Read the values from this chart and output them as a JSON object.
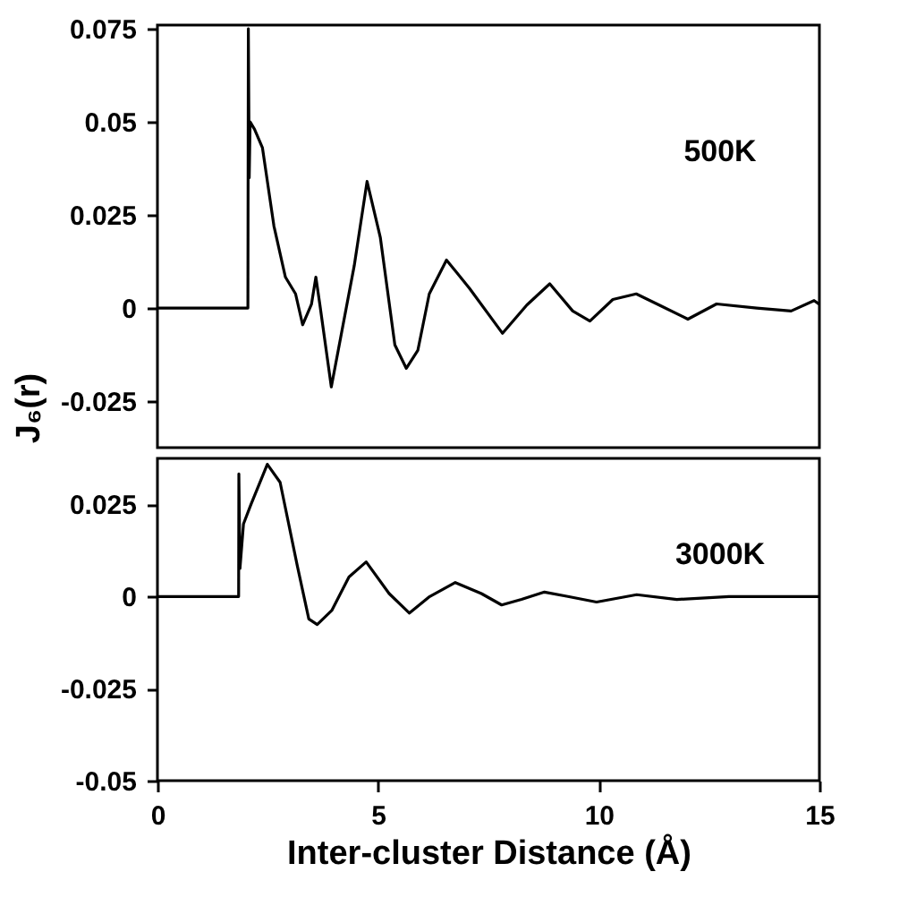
{
  "chart_data": [
    {
      "type": "line",
      "ylabel": "J₆(r)",
      "xlim": [
        0,
        15
      ],
      "xticks": [
        0,
        5,
        10,
        15
      ],
      "ylim": [
        -0.0375,
        0.076
      ],
      "yticks": [
        -0.025,
        0,
        0.025,
        0.05,
        0.075
      ],
      "tick_labels": "y",
      "grid": false,
      "series": [
        {
          "name": "500K",
          "color": "#000000",
          "x": [
            0,
            2.05,
            2.06,
            2.08,
            2.1,
            2.2,
            2.38,
            2.64,
            2.9,
            3.13,
            3.29,
            3.49,
            3.59,
            3.68,
            3.94,
            4.46,
            4.75,
            5.05,
            5.38,
            5.64,
            5.9,
            6.16,
            6.55,
            7.07,
            7.82,
            8.37,
            8.89,
            9.41,
            9.8,
            10.32,
            10.85,
            11.37,
            12.02,
            12.67,
            13.58,
            14.36,
            14.88,
            15
          ],
          "values": [
            0,
            0,
            0.075,
            0.035,
            0.05,
            0.048,
            0.043,
            0.022,
            0.0083,
            0.0038,
            -0.0045,
            0.001,
            0.0083,
            0.001,
            -0.0212,
            0.0114,
            0.034,
            0.019,
            -0.0099,
            -0.0162,
            -0.0114,
            0.0038,
            0.0129,
            0.0053,
            -0.0068,
            0.0008,
            0.0065,
            -0.0008,
            -0.0035,
            0.0023,
            0.0038,
            0.0008,
            -0.003,
            0.0011,
            0,
            -0.0008,
            0.002,
            0.001
          ]
        }
      ]
    },
    {
      "type": "line",
      "xlabel": "Inter-cluster Distance (Å)",
      "xlim": [
        0,
        15
      ],
      "xticks": [
        0,
        5,
        10,
        15
      ],
      "ylim": [
        -0.05,
        0.0375
      ],
      "yticks": [
        -0.05,
        -0.025,
        0,
        0.025
      ],
      "grid": false,
      "series": [
        {
          "name": "3000K",
          "color": "#000000",
          "x": [
            0,
            1.84,
            1.845,
            1.87,
            1.95,
            2.12,
            2.49,
            2.78,
            3.17,
            3.43,
            3.62,
            3.95,
            4.34,
            4.73,
            5.25,
            5.71,
            6.17,
            6.75,
            7.34,
            7.8,
            8.25,
            8.77,
            9.3,
            9.95,
            10.86,
            11.77,
            12.95,
            15
          ],
          "values": [
            0,
            0,
            0.0333,
            0.0076,
            0.0197,
            0.025,
            0.0359,
            0.031,
            0.0083,
            -0.0061,
            -0.0076,
            -0.0038,
            0.0053,
            0.0094,
            0.0008,
            -0.0045,
            0,
            0.0038,
            0.0008,
            -0.0023,
            -0.0008,
            0.0012,
            0,
            -0.0015,
            0.0005,
            -0.0008,
            0,
            0
          ]
        }
      ]
    }
  ]
}
